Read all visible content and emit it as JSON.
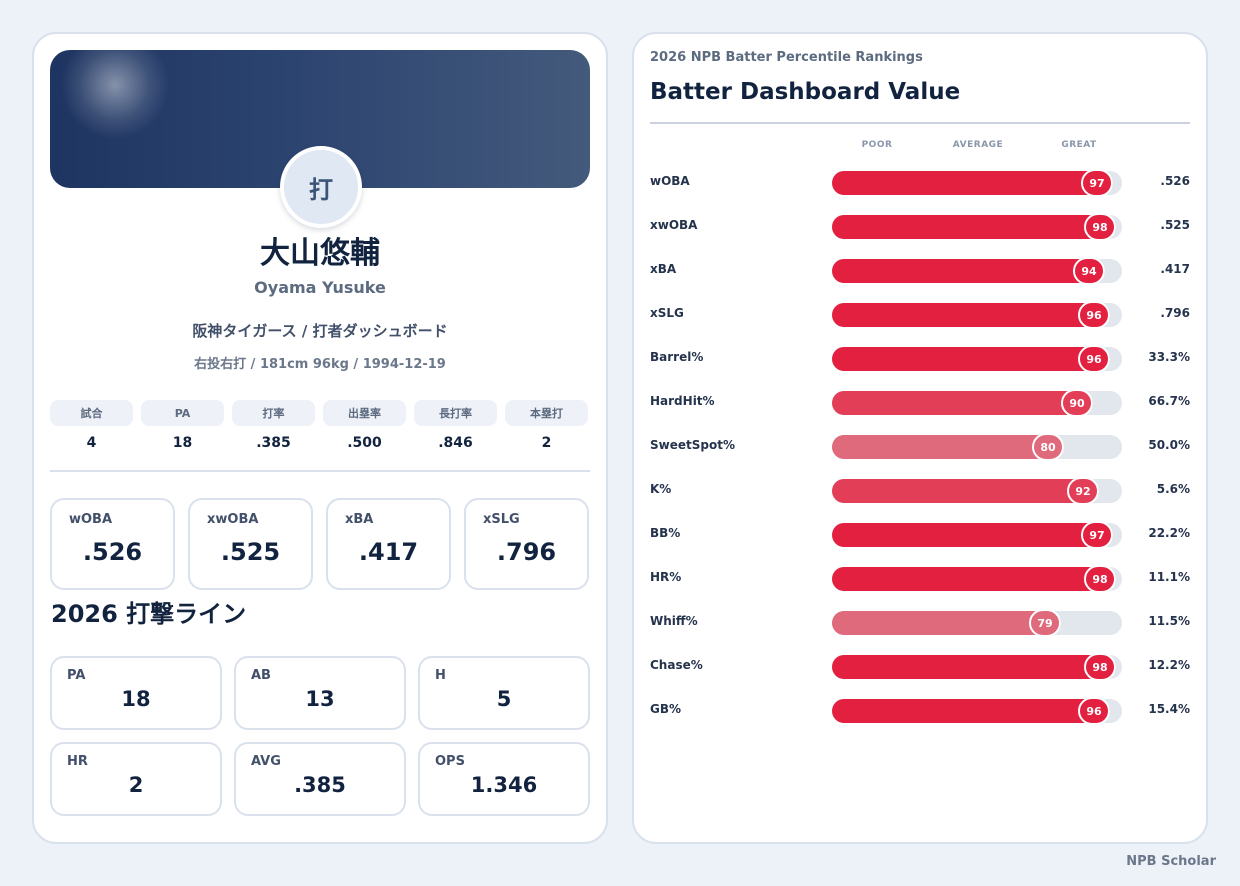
{
  "profile": {
    "avatar_char": "打",
    "name": "大山悠輔",
    "romaji": "Oyama Yusuke",
    "team_line": "阪神タイガース / 打者ダッシュボード",
    "bio_line": "右投右打 / 181cm 96kg / 1994-12-19"
  },
  "summary": [
    {
      "label": "試合",
      "value": "4"
    },
    {
      "label": "PA",
      "value": "18"
    },
    {
      "label": "打率",
      "value": ".385"
    },
    {
      "label": "出塁率",
      "value": ".500"
    },
    {
      "label": "長打率",
      "value": ".846"
    },
    {
      "label": "本塁打",
      "value": "2"
    }
  ],
  "metrics": [
    {
      "label": "wOBA",
      "value": ".526"
    },
    {
      "label": "xwOBA",
      "value": ".525"
    },
    {
      "label": "xBA",
      "value": ".417"
    },
    {
      "label": "xSLG",
      "value": ".796"
    }
  ],
  "batting_line": {
    "title": "2026 打撃ライン",
    "items": [
      {
        "label": "PA",
        "value": "18"
      },
      {
        "label": "AB",
        "value": "13"
      },
      {
        "label": "H",
        "value": "5"
      },
      {
        "label": "HR",
        "value": "2"
      },
      {
        "label": "AVG",
        "value": ".385"
      },
      {
        "label": "OPS",
        "value": "1.346"
      }
    ]
  },
  "rankings": {
    "subtitle": "2026 NPB Batter Percentile Rankings",
    "title": "Batter Dashboard Value",
    "scale": {
      "poor": "POOR",
      "average": "AVERAGE",
      "great": "GREAT"
    },
    "colors": {
      "strong": "#e3203f",
      "mid": "#e33e58",
      "light": "#df6a7c",
      "track": "#e2e7ee"
    },
    "rows": [
      {
        "metric": "wOBA",
        "percentile": 97,
        "value": ".526"
      },
      {
        "metric": "xwOBA",
        "percentile": 98,
        "value": ".525"
      },
      {
        "metric": "xBA",
        "percentile": 94,
        "value": ".417"
      },
      {
        "metric": "xSLG",
        "percentile": 96,
        "value": ".796"
      },
      {
        "metric": "Barrel%",
        "percentile": 96,
        "value": "33.3%"
      },
      {
        "metric": "HardHit%",
        "percentile": 90,
        "value": "66.7%"
      },
      {
        "metric": "SweetSpot%",
        "percentile": 80,
        "value": "50.0%"
      },
      {
        "metric": "K%",
        "percentile": 92,
        "value": "5.6%"
      },
      {
        "metric": "BB%",
        "percentile": 97,
        "value": "22.2%"
      },
      {
        "metric": "HR%",
        "percentile": 98,
        "value": "11.1%"
      },
      {
        "metric": "Whiff%",
        "percentile": 79,
        "value": "11.5%"
      },
      {
        "metric": "Chase%",
        "percentile": 98,
        "value": "12.2%"
      },
      {
        "metric": "GB%",
        "percentile": 96,
        "value": "15.4%"
      }
    ]
  },
  "brand": "NPB Scholar"
}
